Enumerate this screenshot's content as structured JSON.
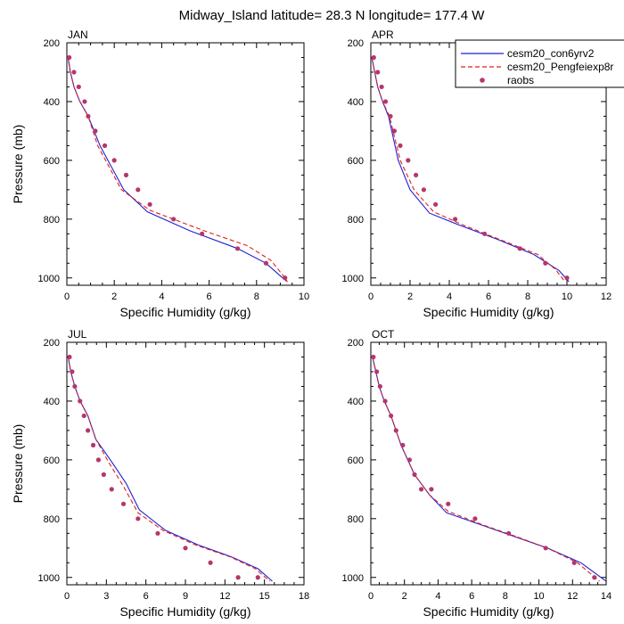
{
  "title": "Midway_Island  latitude= 28.3 N longitude= 177.4 W",
  "legend": {
    "entries": [
      {
        "label": "cesm20_con6yrv2",
        "style": "solid-line",
        "color": "#1f1fd6"
      },
      {
        "label": "cesm20_Pengfeiexp8r",
        "style": "dashed-line",
        "color": "#e0201b"
      },
      {
        "label": "raobs",
        "style": "marker",
        "color": "#b5366b"
      }
    ]
  },
  "chart_data": [
    {
      "type": "line",
      "panel": "JAN",
      "title": "JAN",
      "xlabel": "Specific Humidity (g/kg)",
      "ylabel": "Pressure (mb)",
      "xlim": [
        0,
        10
      ],
      "xticks": [
        0,
        2,
        4,
        6,
        8,
        10
      ],
      "ylim": [
        200,
        1025
      ],
      "yticks": [
        200,
        400,
        600,
        800,
        1000
      ],
      "y_inverted": true,
      "series": [
        {
          "name": "cesm20_con6yrv2",
          "x": [
            0.05,
            0.15,
            0.3,
            0.55,
            0.9,
            1.4,
            2.4,
            3.4,
            5.2,
            7.2,
            8.4,
            9.1,
            9.3
          ],
          "y": [
            250,
            300,
            350,
            400,
            450,
            550,
            700,
            775,
            840,
            900,
            950,
            1000,
            1013
          ]
        },
        {
          "name": "cesm20_Pengfeiexp8r",
          "x": [
            0.05,
            0.15,
            0.3,
            0.55,
            0.9,
            1.3,
            2.3,
            3.5,
            5.8,
            7.6,
            8.6,
            9.15,
            9.3
          ],
          "y": [
            250,
            300,
            350,
            400,
            450,
            550,
            700,
            770,
            840,
            890,
            940,
            995,
            1013
          ]
        },
        {
          "name": "raobs",
          "x": [
            0.1,
            0.3,
            0.5,
            0.75,
            0.9,
            1.2,
            1.6,
            2.0,
            2.5,
            3.0,
            3.5,
            4.5,
            5.7,
            7.2,
            8.4,
            9.2
          ],
          "y": [
            250,
            300,
            350,
            400,
            450,
            500,
            550,
            600,
            650,
            700,
            750,
            800,
            850,
            900,
            950,
            1000
          ]
        }
      ]
    },
    {
      "type": "line",
      "panel": "APR",
      "title": "APR",
      "xlabel": "Specific Humidity (g/kg)",
      "ylabel": "",
      "xlim": [
        0,
        12
      ],
      "xticks": [
        0,
        2,
        4,
        6,
        8,
        10,
        12
      ],
      "ylim": [
        200,
        1025
      ],
      "yticks": [
        200,
        400,
        600,
        800,
        1000
      ],
      "y_inverted": true,
      "series": [
        {
          "name": "cesm20_con6yrv2",
          "x": [
            0.05,
            0.2,
            0.35,
            0.6,
            0.9,
            1.4,
            2.0,
            3.0,
            4.5,
            6.5,
            8.3,
            9.6,
            10.1
          ],
          "y": [
            250,
            300,
            350,
            400,
            450,
            600,
            700,
            780,
            820,
            870,
            920,
            975,
            1013
          ]
        },
        {
          "name": "cesm20_Pengfeiexp8r",
          "x": [
            0.05,
            0.2,
            0.35,
            0.6,
            0.95,
            1.5,
            2.2,
            3.2,
            4.7,
            6.6,
            8.5,
            9.4,
            9.9
          ],
          "y": [
            250,
            300,
            350,
            400,
            450,
            600,
            700,
            775,
            820,
            870,
            920,
            970,
            1013
          ]
        },
        {
          "name": "raobs",
          "x": [
            0.15,
            0.35,
            0.55,
            0.75,
            1.0,
            1.2,
            1.5,
            1.9,
            2.3,
            2.7,
            3.3,
            4.3,
            5.8,
            7.6,
            8.9,
            10.0
          ],
          "y": [
            250,
            300,
            350,
            400,
            450,
            500,
            550,
            600,
            650,
            700,
            750,
            800,
            850,
            900,
            950,
            1000
          ]
        }
      ]
    },
    {
      "type": "line",
      "panel": "JUL",
      "title": "JUL",
      "xlabel": "Specific Humidity (g/kg)",
      "ylabel": "Pressure (mb)",
      "xlim": [
        0,
        18
      ],
      "xticks": [
        0,
        3,
        6,
        9,
        12,
        15,
        18
      ],
      "ylim": [
        200,
        1025
      ],
      "yticks": [
        200,
        400,
        600,
        800,
        1000
      ],
      "y_inverted": true,
      "series": [
        {
          "name": "cesm20_con6yrv2",
          "x": [
            0.1,
            0.3,
            0.6,
            1.0,
            1.6,
            2.2,
            3.3,
            4.5,
            5.5,
            7.5,
            10.0,
            12.5,
            14.5,
            15.6
          ],
          "y": [
            250,
            300,
            350,
            400,
            450,
            530,
            600,
            680,
            770,
            840,
            890,
            930,
            970,
            1013
          ]
        },
        {
          "name": "cesm20_Pengfeiexp8r",
          "x": [
            0.1,
            0.3,
            0.6,
            1.0,
            1.6,
            2.2,
            3.2,
            4.3,
            5.4,
            7.3,
            9.8,
            12.4,
            14.3,
            15.4
          ],
          "y": [
            250,
            300,
            350,
            400,
            450,
            530,
            610,
            690,
            780,
            840,
            890,
            930,
            970,
            1013
          ]
        },
        {
          "name": "raobs",
          "x": [
            0.2,
            0.4,
            0.6,
            1.0,
            1.3,
            1.6,
            2.0,
            2.4,
            2.8,
            3.4,
            4.3,
            5.4,
            6.9,
            9.0,
            10.9,
            13.0,
            14.5
          ],
          "y": [
            250,
            300,
            350,
            400,
            450,
            500,
            550,
            600,
            650,
            700,
            750,
            800,
            850,
            900,
            950,
            1000,
            1000
          ]
        }
      ]
    },
    {
      "type": "line",
      "panel": "OCT",
      "title": "OCT",
      "xlabel": "Specific Humidity (g/kg)",
      "ylabel": "",
      "xlim": [
        0,
        14
      ],
      "xticks": [
        0,
        2,
        4,
        6,
        8,
        10,
        12,
        14
      ],
      "ylim": [
        200,
        1025
      ],
      "yticks": [
        200,
        400,
        600,
        800,
        1000
      ],
      "y_inverted": true,
      "series": [
        {
          "name": "cesm20_con6yrv2",
          "x": [
            0.1,
            0.3,
            0.5,
            0.8,
            1.2,
            1.8,
            2.6,
            3.5,
            4.5,
            6.5,
            8.5,
            10.5,
            12.5,
            14.0
          ],
          "y": [
            250,
            300,
            350,
            400,
            450,
            550,
            650,
            720,
            780,
            820,
            860,
            900,
            950,
            1013
          ]
        },
        {
          "name": "cesm20_Pengfeiexp8r",
          "x": [
            0.1,
            0.3,
            0.5,
            0.8,
            1.2,
            1.8,
            2.6,
            3.5,
            4.6,
            6.6,
            8.6,
            10.5,
            12.3,
            13.6
          ],
          "y": [
            250,
            300,
            350,
            400,
            450,
            550,
            650,
            720,
            775,
            820,
            860,
            900,
            950,
            1013
          ]
        },
        {
          "name": "raobs",
          "x": [
            0.15,
            0.35,
            0.55,
            0.85,
            1.2,
            1.5,
            1.9,
            2.3,
            2.6,
            3.0,
            3.6,
            4.6,
            6.2,
            8.2,
            10.4,
            12.1,
            13.3
          ],
          "y": [
            250,
            300,
            350,
            400,
            450,
            500,
            550,
            600,
            650,
            700,
            700,
            750,
            800,
            850,
            900,
            950,
            1000
          ]
        }
      ]
    }
  ]
}
